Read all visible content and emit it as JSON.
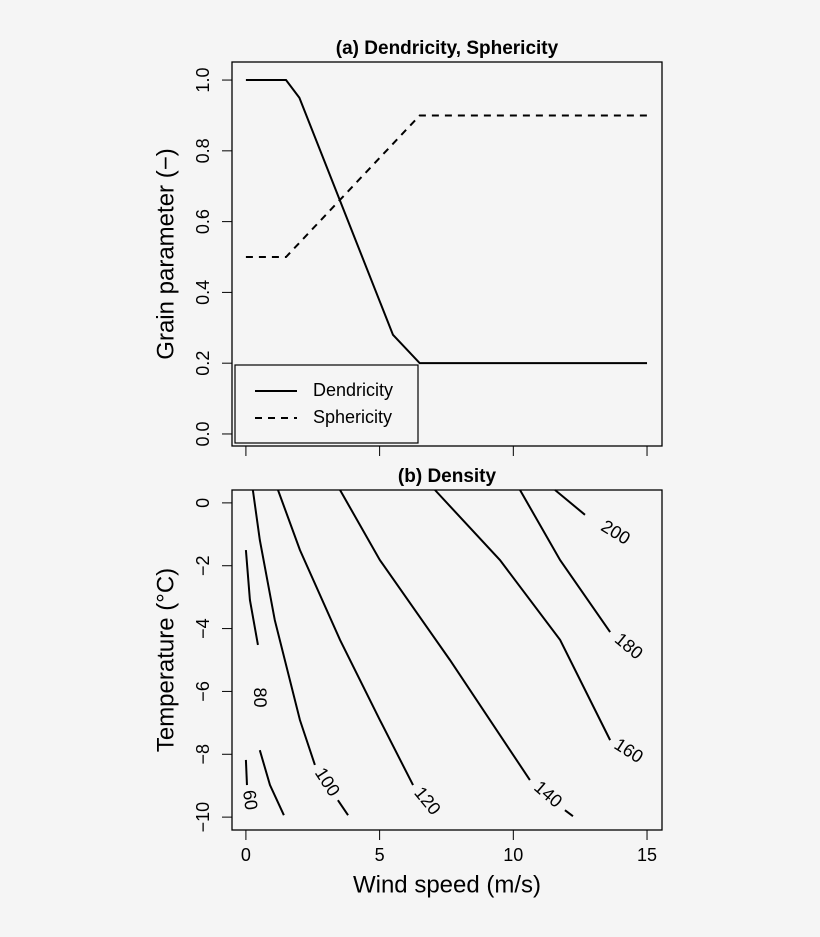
{
  "chart_data": [
    {
      "type": "line",
      "title": "(a) Dendricity, Sphericity",
      "ylabel": "Grain parameter (−)",
      "xlim": [
        -0.52,
        15.56
      ],
      "ylim": [
        -0.034,
        1.051
      ],
      "xticks": [
        0,
        5,
        10,
        15
      ],
      "xticklabels": false,
      "yticks": [
        {
          "value": 0,
          "label": "0.0"
        },
        0.2,
        0.4,
        0.6,
        0.8,
        {
          "value": 1,
          "label": "1.0"
        }
      ],
      "legend": "bottom-left",
      "series": [
        {
          "name": "Dendricity",
          "color": "#000000",
          "linestyle": "solid",
          "x": [
            0,
            1.5,
            2,
            5.5,
            6.5,
            15
          ],
          "values": [
            1,
            1,
            0.95,
            0.28,
            0.2,
            0.2
          ]
        },
        {
          "name": "Sphericity",
          "color": "#000000",
          "linestyle": "dashed",
          "x": [
            0,
            1.5,
            6.5,
            15
          ],
          "values": [
            0.5,
            0.5,
            0.9,
            0.9
          ]
        }
      ]
    },
    {
      "type": "contour",
      "title": "(b) Density",
      "xlabel": "Wind speed (m/s)",
      "ylabel": "Temperature (°C)",
      "xlim": [
        -0.52,
        15.56
      ],
      "ylim": [
        -10.41,
        0.41
      ],
      "xticks": [
        0,
        5,
        10,
        15
      ],
      "yticks": [
        0,
        {
          "value": -2,
          "label": "−2"
        },
        {
          "value": -4,
          "label": "−4"
        },
        {
          "value": -6,
          "label": "−6"
        },
        {
          "value": -8,
          "label": "−8"
        },
        {
          "value": -10,
          "label": "−10"
        }
      ],
      "color": "#000000",
      "series": [
        {
          "level": 60,
          "x": [
            0,
            0.04,
            null,
            0.19
          ],
          "y": [
            -8.18,
            -8.98,
            null,
            -9.94
          ]
        },
        {
          "level": 80,
          "x": [
            0,
            0.15,
            0.45,
            null,
            0.52,
            0.9,
            1.42
          ],
          "y": [
            -1.5,
            -3.09,
            -4.52,
            null,
            -7.87,
            -8.98,
            -9.94
          ]
        },
        {
          "level": 100,
          "x": [
            0.26,
            0.52,
            1.08,
            2.02,
            2.58,
            null,
            3.44,
            3.82
          ],
          "y": [
            0.41,
            -1.18,
            -3.73,
            -6.91,
            -8.34,
            null,
            -9.46,
            -9.94
          ]
        },
        {
          "level": 120,
          "x": [
            1.2,
            2.02,
            3.52,
            5.01,
            6.25,
            null,
            7.26
          ],
          "y": [
            0.41,
            -1.5,
            -4.36,
            -6.91,
            -8.98,
            null,
            -10.03
          ]
        },
        {
          "level": 140,
          "x": [
            3.52,
            5.01,
            7.63,
            10.62,
            null,
            11.93,
            12.23
          ],
          "y": [
            0.41,
            -1.82,
            -5.0,
            -8.82,
            null,
            -9.78,
            -9.97
          ]
        },
        {
          "level": 160,
          "x": [
            7.07,
            9.5,
            11.75,
            13.62,
            null,
            14.96
          ],
          "y": [
            0.41,
            -1.82,
            -4.36,
            -7.55,
            null,
            -8.28
          ]
        },
        {
          "level": 180,
          "x": [
            10.25,
            11.75,
            13.62,
            null,
            14.96
          ],
          "y": [
            0.41,
            -1.82,
            -4.11,
            null,
            -5.06
          ]
        },
        {
          "level": 200,
          "x": [
            11.56,
            12.68,
            null,
            14.93
          ],
          "y": [
            0.41,
            -0.38,
            null,
            -1.56
          ]
        }
      ]
    }
  ]
}
